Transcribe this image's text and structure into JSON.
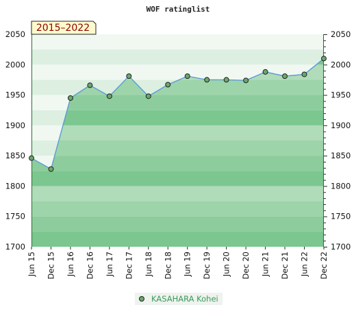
{
  "chart_data": {
    "type": "area",
    "title": "WOF ratinglist",
    "period": "2015–2022",
    "categories": [
      "Jun 15",
      "Dec 15",
      "Jun 16",
      "Dec 16",
      "Jun 17",
      "Dec 17",
      "Jun 18",
      "Dec 18",
      "Jun 19",
      "Dec 19",
      "Jun 20",
      "Dec 20",
      "Jun 21",
      "Dec 21",
      "Jun 22",
      "Dec 22"
    ],
    "series": [
      {
        "name": "KASAHARA Kohei",
        "values": [
          1846,
          1828,
          1945,
          1966,
          1948,
          1981,
          1948,
          1967,
          1981,
          1975,
          1975,
          1974,
          1988,
          1981,
          1984,
          2010
        ]
      }
    ],
    "ylim": [
      1700,
      2050
    ],
    "yticks": [
      1700,
      1750,
      1800,
      1850,
      1900,
      1950,
      2000,
      2050
    ],
    "xlabel": "",
    "ylabel": "",
    "grid": true,
    "legend": "bottom-center",
    "colors": {
      "line": "#5b9bd5",
      "area": "#2e9e4e",
      "marker": "#6aa86a",
      "axis": "#2d6a2d"
    }
  }
}
